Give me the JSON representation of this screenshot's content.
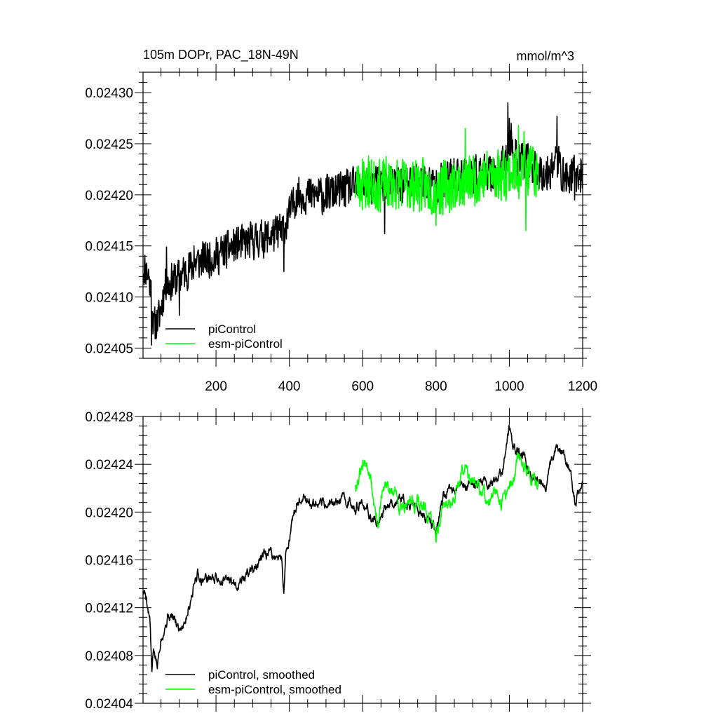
{
  "chart_data": [
    {
      "type": "line",
      "title": "105m DOPr, PAC_18N-49N",
      "units": "mmol/m^3",
      "xlim": [
        1,
        1200
      ],
      "ylim": [
        0.02404,
        0.02432
      ],
      "x_ticks": [
        "200",
        "400",
        "600",
        "800",
        "1000",
        "1200"
      ],
      "y_ticks": [
        "0.02405",
        "0.02410",
        "0.02415",
        "0.02420",
        "0.02425",
        "0.02430"
      ],
      "legend_position": "bottom-left",
      "series": [
        {
          "name": "piControl",
          "color": "#000000",
          "x_start": 1,
          "x_end": 1200,
          "trend": [
            [
              1,
              0.02413
            ],
            [
              20,
              0.02412
            ],
            [
              30,
              0.02407
            ],
            [
              45,
              0.02408
            ],
            [
              60,
              0.02411
            ],
            [
              100,
              0.02412
            ],
            [
              150,
              0.024135
            ],
            [
              200,
              0.02414
            ],
            [
              250,
              0.02415
            ],
            [
              300,
              0.024155
            ],
            [
              350,
              0.02416
            ],
            [
              380,
              0.024165
            ],
            [
              400,
              0.02418
            ],
            [
              420,
              0.0242
            ],
            [
              450,
              0.0242
            ],
            [
              500,
              0.0242
            ],
            [
              550,
              0.024205
            ],
            [
              600,
              0.02421
            ],
            [
              650,
              0.02421
            ],
            [
              700,
              0.02421
            ],
            [
              750,
              0.024215
            ],
            [
              800,
              0.02421
            ],
            [
              850,
              0.02422
            ],
            [
              900,
              0.02422
            ],
            [
              950,
              0.02422
            ],
            [
              990,
              0.02423
            ],
            [
              1000,
              0.024255
            ],
            [
              1010,
              0.02424
            ],
            [
              1050,
              0.02423
            ],
            [
              1100,
              0.02422
            ],
            [
              1130,
              0.024235
            ],
            [
              1150,
              0.024215
            ],
            [
              1170,
              0.02422
            ],
            [
              1200,
              0.02422
            ]
          ],
          "noise": 1.8e-05,
          "seed": 11,
          "spikes": [
            [
              10,
              0.02413
            ],
            [
              19,
              0.024102
            ],
            [
              24,
              0.024053
            ],
            [
              65,
              0.024149
            ],
            [
              100,
              0.024082
            ],
            [
              140,
              0.02415
            ],
            [
              380,
              0.024155
            ],
            [
              385,
              0.024125
            ],
            [
              600,
              0.024233
            ],
            [
              660,
              0.024162
            ],
            [
              996,
              0.02429
            ],
            [
              1000,
              0.024275
            ],
            [
              1005,
              0.02427
            ],
            [
              1130,
              0.024277
            ],
            [
              1178,
              0.024195
            ],
            [
              1200,
              0.02423
            ]
          ]
        },
        {
          "name": "esm-piControl",
          "color": "#00ff00",
          "x_start": 580,
          "x_end": 1080,
          "trend": [
            [
              580,
              0.02421
            ],
            [
              650,
              0.02421
            ],
            [
              700,
              0.02421
            ],
            [
              750,
              0.02421
            ],
            [
              800,
              0.024205
            ],
            [
              850,
              0.02421
            ],
            [
              900,
              0.024215
            ],
            [
              950,
              0.02422
            ],
            [
              1000,
              0.024222
            ],
            [
              1050,
              0.024223
            ],
            [
              1080,
              0.02422
            ]
          ],
          "noise": 2.5e-05,
          "seed": 23,
          "spikes": [
            [
              600,
              0.024235
            ],
            [
              616,
              0.024238
            ],
            [
              800,
              0.02417
            ],
            [
              880,
              0.024265
            ],
            [
              1025,
              0.024268
            ],
            [
              1040,
              0.024262
            ],
            [
              1045,
              0.024165
            ],
            [
              1065,
              0.024245
            ]
          ]
        }
      ]
    },
    {
      "type": "line",
      "title": "",
      "xlim": [
        1,
        1200
      ],
      "ylim": [
        0.02404,
        0.02428
      ],
      "y_ticks": [
        "0.02404",
        "0.02408",
        "0.02412",
        "0.02416",
        "0.02420",
        "0.02424",
        "0.02428"
      ],
      "legend_position": "bottom-left",
      "series": [
        {
          "name": "piControl, smoothed",
          "color": "#000000",
          "x_start": 1,
          "x_end": 1200,
          "trend": [
            [
              1,
              0.024134
            ],
            [
              10,
              0.02413
            ],
            [
              20,
              0.02411
            ],
            [
              25,
              0.024064
            ],
            [
              30,
              0.024085
            ],
            [
              40,
              0.02407
            ],
            [
              50,
              0.024098
            ],
            [
              60,
              0.024105
            ],
            [
              70,
              0.024115
            ],
            [
              80,
              0.024112
            ],
            [
              100,
              0.024102
            ],
            [
              120,
              0.024115
            ],
            [
              140,
              0.02414
            ],
            [
              150,
              0.02415
            ],
            [
              160,
              0.024145
            ],
            [
              200,
              0.024145
            ],
            [
              250,
              0.02414
            ],
            [
              300,
              0.024152
            ],
            [
              350,
              0.024165
            ],
            [
              380,
              0.02416
            ],
            [
              385,
              0.024133
            ],
            [
              390,
              0.024165
            ],
            [
              400,
              0.02418
            ],
            [
              420,
              0.024205
            ],
            [
              440,
              0.024215
            ],
            [
              460,
              0.024205
            ],
            [
              480,
              0.024202
            ],
            [
              500,
              0.024205
            ],
            [
              550,
              0.02421
            ],
            [
              600,
              0.024205
            ],
            [
              640,
              0.02419
            ],
            [
              660,
              0.024205
            ],
            [
              700,
              0.024212
            ],
            [
              750,
              0.024205
            ],
            [
              800,
              0.024185
            ],
            [
              820,
              0.02421
            ],
            [
              850,
              0.024218
            ],
            [
              900,
              0.024223
            ],
            [
              950,
              0.024225
            ],
            [
              980,
              0.02423
            ],
            [
              1000,
              0.02427
            ],
            [
              1005,
              0.024272
            ],
            [
              1010,
              0.024255
            ],
            [
              1040,
              0.024245
            ],
            [
              1060,
              0.02423
            ],
            [
              1100,
              0.024225
            ],
            [
              1130,
              0.024255
            ],
            [
              1160,
              0.02424
            ],
            [
              1180,
              0.024208
            ],
            [
              1200,
              0.02423
            ]
          ],
          "noise": 6.5e-06,
          "seed": 5
        },
        {
          "name": "esm-piControl, smoothed",
          "color": "#00ff00",
          "x_start": 580,
          "x_end": 1080,
          "trend": [
            [
              580,
              0.024225
            ],
            [
              600,
              0.024235
            ],
            [
              616,
              0.024238
            ],
            [
              640,
              0.02419
            ],
            [
              660,
              0.02422
            ],
            [
              700,
              0.02421
            ],
            [
              750,
              0.02421
            ],
            [
              800,
              0.024182
            ],
            [
              820,
              0.024205
            ],
            [
              850,
              0.024215
            ],
            [
              880,
              0.02424
            ],
            [
              900,
              0.02422
            ],
            [
              950,
              0.02421
            ],
            [
              1000,
              0.024215
            ],
            [
              1025,
              0.024245
            ],
            [
              1050,
              0.024235
            ],
            [
              1080,
              0.024225
            ]
          ],
          "noise": 9e-06,
          "seed": 31
        }
      ]
    }
  ]
}
